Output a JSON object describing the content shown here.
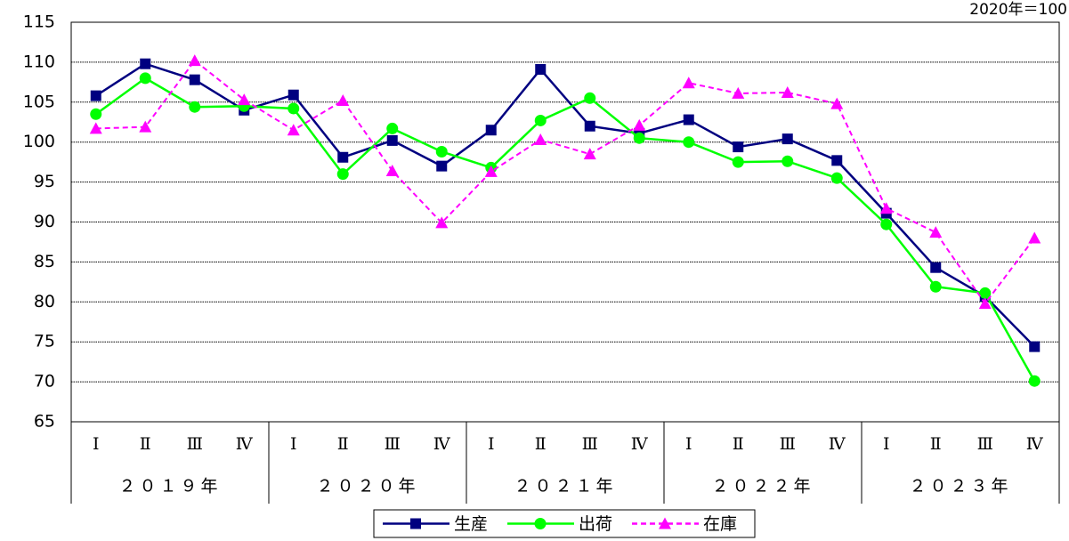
{
  "chart_data": {
    "type": "line",
    "unit_note": "2020年＝100",
    "categories": [
      "Ⅰ",
      "Ⅱ",
      "Ⅲ",
      "Ⅳ",
      "Ⅰ",
      "Ⅱ",
      "Ⅲ",
      "Ⅳ",
      "Ⅰ",
      "Ⅱ",
      "Ⅲ",
      "Ⅳ",
      "Ⅰ",
      "Ⅱ",
      "Ⅲ",
      "Ⅳ",
      "Ⅰ",
      "Ⅱ",
      "Ⅲ",
      "Ⅳ"
    ],
    "years": [
      "２０１９年",
      "２０２０年",
      "２０２１年",
      "２０２２年",
      "２０２３年"
    ],
    "series": [
      {
        "name": "生産",
        "color": "#000080",
        "marker": "square",
        "dashed": false,
        "values": [
          105.8,
          109.8,
          107.8,
          104.0,
          105.9,
          98.1,
          100.2,
          97.0,
          101.5,
          109.1,
          102.0,
          101.1,
          102.8,
          99.4,
          100.4,
          97.7,
          91.1,
          84.3,
          80.7,
          74.4
        ]
      },
      {
        "name": "出荷",
        "color": "#00ff00",
        "marker": "circle",
        "dashed": false,
        "values": [
          103.5,
          108.0,
          104.4,
          104.5,
          104.2,
          96.0,
          101.7,
          98.8,
          96.8,
          102.7,
          105.5,
          100.5,
          100.0,
          97.5,
          97.6,
          95.5,
          89.7,
          81.9,
          81.1,
          70.1
        ]
      },
      {
        "name": "在庫",
        "color": "#ff00ff",
        "marker": "triangle",
        "dashed": true,
        "values": [
          101.7,
          101.9,
          110.2,
          105.3,
          101.5,
          105.2,
          96.4,
          89.9,
          96.3,
          100.3,
          98.5,
          102.1,
          107.4,
          106.1,
          106.2,
          104.8,
          91.7,
          88.7,
          79.8,
          88.0
        ]
      }
    ],
    "ylim": [
      65,
      115
    ],
    "yticks": [
      65,
      70,
      75,
      80,
      85,
      90,
      95,
      100,
      105,
      110,
      115
    ],
    "grid": true,
    "legend": "bottom"
  }
}
